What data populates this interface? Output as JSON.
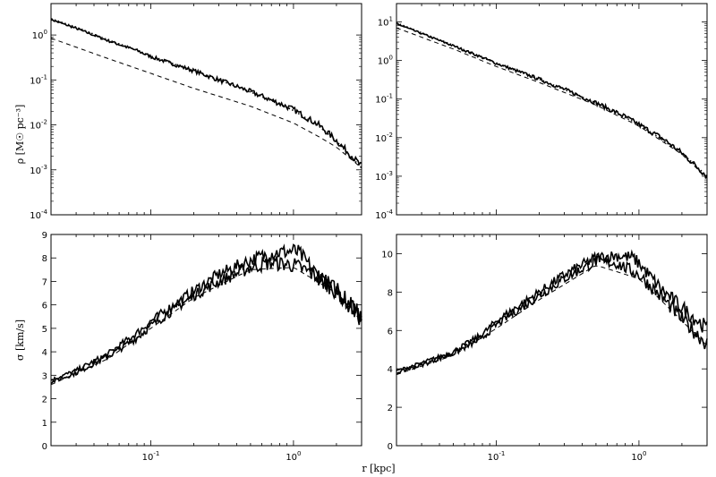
{
  "chart_data": [
    {
      "id": "top-left",
      "type": "line",
      "xscale": "log",
      "yscale": "log",
      "xlim": [
        0.02,
        3.0
      ],
      "ylim": [
        0.0001,
        5
      ],
      "ylabel": "ρ [M☉ pc⁻³]",
      "y_ticks": [
        {
          "value": 1,
          "base": "10",
          "exp": "0"
        },
        {
          "value": 0.1,
          "base": "10",
          "exp": "-1"
        },
        {
          "value": 0.01,
          "base": "10",
          "exp": "-2"
        },
        {
          "value": 0.001,
          "base": "10",
          "exp": "-3"
        },
        {
          "value": 0.0001,
          "base": "10",
          "exp": "-4"
        }
      ],
      "x_ticks": [],
      "series": [
        {
          "style": "noisy",
          "x": [
            0.02,
            0.03,
            0.05,
            0.08,
            0.1,
            0.2,
            0.3,
            0.5,
            0.8,
            1.0,
            1.5,
            2.0,
            3.0
          ],
          "y": [
            2.2,
            1.4,
            0.75,
            0.45,
            0.33,
            0.16,
            0.1,
            0.055,
            0.03,
            0.022,
            0.01,
            0.0045,
            0.0012
          ]
        },
        {
          "style": "dotted",
          "x": [
            0.02,
            0.03,
            0.05,
            0.08,
            0.1,
            0.2,
            0.3,
            0.5,
            0.8,
            1.0,
            1.5,
            2.0,
            3.0
          ],
          "y": [
            2.3,
            1.5,
            0.78,
            0.46,
            0.34,
            0.16,
            0.1,
            0.054,
            0.029,
            0.021,
            0.0095,
            0.0043,
            0.0011
          ]
        },
        {
          "style": "dashed",
          "x": [
            0.02,
            0.05,
            0.1,
            0.2,
            0.5,
            1.0,
            1.5,
            2.0,
            3.0
          ],
          "y": [
            0.85,
            0.3,
            0.14,
            0.065,
            0.026,
            0.011,
            0.0055,
            0.0032,
            0.0011
          ]
        }
      ]
    },
    {
      "id": "top-right",
      "type": "line",
      "xscale": "log",
      "yscale": "log",
      "xlim": [
        0.02,
        3.0
      ],
      "ylim": [
        0.0001,
        30
      ],
      "ylabel": "",
      "y_ticks": [
        {
          "value": 10,
          "base": "10",
          "exp": "1"
        },
        {
          "value": 1,
          "base": "10",
          "exp": "0"
        },
        {
          "value": 0.1,
          "base": "10",
          "exp": "-1"
        },
        {
          "value": 0.01,
          "base": "10",
          "exp": "-2"
        },
        {
          "value": 0.001,
          "base": "10",
          "exp": "-3"
        },
        {
          "value": 0.0001,
          "base": "10",
          "exp": "-4"
        }
      ],
      "x_ticks": [],
      "series": [
        {
          "style": "noisy",
          "x": [
            0.02,
            0.03,
            0.05,
            0.08,
            0.1,
            0.2,
            0.3,
            0.5,
            0.8,
            1.0,
            1.5,
            2.0,
            3.0
          ],
          "y": [
            9.0,
            5.0,
            2.4,
            1.2,
            0.85,
            0.33,
            0.18,
            0.08,
            0.035,
            0.022,
            0.009,
            0.004,
            0.001
          ]
        },
        {
          "style": "dotted",
          "x": [
            0.02,
            0.05,
            0.1,
            0.2,
            0.5,
            1.0,
            2.0,
            3.0
          ],
          "y": [
            9.5,
            2.5,
            0.85,
            0.33,
            0.08,
            0.022,
            0.004,
            0.001
          ]
        },
        {
          "style": "dashed",
          "x": [
            0.02,
            0.05,
            0.1,
            0.2,
            0.5,
            1.0,
            2.0,
            3.0
          ],
          "y": [
            7.0,
            2.0,
            0.7,
            0.27,
            0.07,
            0.02,
            0.0037,
            0.0009
          ]
        }
      ]
    },
    {
      "id": "bottom-left",
      "type": "line",
      "xscale": "log",
      "yscale": "linear",
      "xlim": [
        0.02,
        3.0
      ],
      "ylim": [
        0,
        9
      ],
      "ylabel": "σ [km/s]",
      "y_ticks": [
        {
          "value": 0,
          "label": "0"
        },
        {
          "value": 1,
          "label": "1"
        },
        {
          "value": 2,
          "label": "2"
        },
        {
          "value": 3,
          "label": "3"
        },
        {
          "value": 4,
          "label": "4"
        },
        {
          "value": 5,
          "label": "5"
        },
        {
          "value": 6,
          "label": "6"
        },
        {
          "value": 7,
          "label": "7"
        },
        {
          "value": 8,
          "label": "8"
        },
        {
          "value": 9,
          "label": "9"
        }
      ],
      "x_ticks": [
        {
          "value": 0.1,
          "base": "10",
          "exp": "-1"
        },
        {
          "value": 1,
          "base": "10",
          "exp": "0"
        }
      ],
      "series": [
        {
          "style": "noisy",
          "x": [
            0.02,
            0.03,
            0.05,
            0.08,
            0.1,
            0.2,
            0.3,
            0.5,
            0.7,
            1.0,
            1.1,
            1.2,
            1.5,
            2.0,
            2.5,
            3.0
          ],
          "y": [
            2.8,
            3.2,
            3.9,
            4.8,
            5.3,
            6.6,
            7.3,
            7.9,
            8.2,
            8.3,
            8.2,
            7.9,
            7.2,
            6.6,
            6.0,
            5.6
          ]
        },
        {
          "style": "noisy",
          "x": [
            0.02,
            0.03,
            0.05,
            0.08,
            0.1,
            0.2,
            0.3,
            0.5,
            0.7,
            1.0,
            1.5,
            2.0,
            2.5,
            3.0
          ],
          "y": [
            2.7,
            3.1,
            3.8,
            4.6,
            5.1,
            6.4,
            7.0,
            7.6,
            7.8,
            7.7,
            7.2,
            6.6,
            6.0,
            5.4
          ]
        },
        {
          "style": "dashed",
          "x": [
            0.02,
            0.05,
            0.1,
            0.2,
            0.5,
            1.0,
            2.0,
            3.0
          ],
          "y": [
            2.6,
            3.7,
            5.0,
            6.3,
            7.5,
            7.6,
            6.5,
            5.3
          ]
        }
      ]
    },
    {
      "id": "bottom-right",
      "type": "line",
      "xscale": "log",
      "yscale": "linear",
      "xlim": [
        0.02,
        3.0
      ],
      "ylim": [
        0,
        11
      ],
      "ylabel": "",
      "y_ticks": [
        {
          "value": 0,
          "label": "0"
        },
        {
          "value": 2,
          "label": "2"
        },
        {
          "value": 4,
          "label": "4"
        },
        {
          "value": 6,
          "label": "6"
        },
        {
          "value": 8,
          "label": "8"
        },
        {
          "value": 10,
          "label": "10"
        }
      ],
      "x_ticks": [
        {
          "value": 0.1,
          "base": "10",
          "exp": "-1"
        },
        {
          "value": 1,
          "base": "10",
          "exp": "0"
        }
      ],
      "series": [
        {
          "style": "noisy",
          "x": [
            0.02,
            0.03,
            0.05,
            0.08,
            0.1,
            0.2,
            0.3,
            0.5,
            0.7,
            0.9,
            1.0,
            1.2,
            1.5,
            2.0,
            3.0
          ],
          "y": [
            3.9,
            4.3,
            4.9,
            5.8,
            6.5,
            8.0,
            8.9,
            9.8,
            9.9,
            9.8,
            9.5,
            8.8,
            8.0,
            7.2,
            6.1
          ]
        },
        {
          "style": "noisy",
          "x": [
            0.02,
            0.03,
            0.05,
            0.08,
            0.1,
            0.2,
            0.3,
            0.5,
            0.7,
            1.0,
            1.5,
            2.0,
            3.0
          ],
          "y": [
            3.8,
            4.2,
            4.8,
            5.6,
            6.3,
            7.8,
            8.7,
            9.6,
            9.5,
            8.9,
            7.6,
            6.6,
            5.3
          ]
        },
        {
          "style": "dashed",
          "x": [
            0.02,
            0.05,
            0.1,
            0.2,
            0.5,
            1.0,
            2.0,
            3.0
          ],
          "y": [
            3.7,
            4.7,
            6.1,
            7.6,
            9.4,
            8.7,
            6.5,
            5.2
          ]
        }
      ]
    }
  ],
  "shared_xlabel": "r [kpc]"
}
